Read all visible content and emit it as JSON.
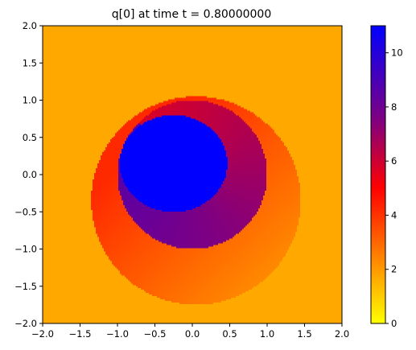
{
  "chart_data": {
    "type": "heatmap",
    "title": "q[0] at time t =     0.80000000",
    "xlabel": "",
    "ylabel": "",
    "xlim": [
      -2.0,
      2.0
    ],
    "ylim": [
      -2.0,
      2.0
    ],
    "x_ticks": [
      -2.0,
      -1.5,
      -1.0,
      -0.5,
      0.0,
      0.5,
      1.0,
      1.5,
      2.0
    ],
    "x_tick_labels": [
      "−2.0",
      "−1.5",
      "−1.0",
      "−0.5",
      "0.0",
      "0.5",
      "1.0",
      "1.5",
      "2.0"
    ],
    "y_ticks": [
      2.0,
      1.5,
      1.0,
      0.5,
      0.0,
      -0.5,
      -1.0,
      -1.5,
      -2.0
    ],
    "y_tick_labels": [
      "2.0",
      "1.5",
      "1.0",
      "0.5",
      "0.0",
      "−0.5",
      "−1.0",
      "−1.5",
      "−2.0"
    ],
    "grid": false,
    "background_value": 1.7,
    "regions": {
      "outer_disk": {
        "center": [
          0.05,
          -0.35
        ],
        "radius": 1.4,
        "value_range": [
          1.7,
          4.2
        ]
      },
      "swirl_disk": {
        "center": [
          0.0,
          0.0
        ],
        "radius": 1.0,
        "value_range": [
          4.2,
          8.5
        ]
      },
      "core_blob": {
        "center": [
          -0.25,
          0.15
        ],
        "radius_x": 0.72,
        "radius_y": 0.65,
        "value": 11.0
      }
    },
    "colorbar": {
      "range": [
        0,
        11
      ],
      "ticks": [
        0,
        2,
        4,
        6,
        8,
        10
      ],
      "tick_labels": [
        "0",
        "2",
        "4",
        "6",
        "8",
        "10"
      ],
      "colors": [
        {
          "value": 0,
          "color": "#ffff00"
        },
        {
          "value": 5,
          "color": "#ff0000"
        },
        {
          "value": 7.5,
          "color": "#800080"
        },
        {
          "value": 11,
          "color": "#0000ff"
        }
      ]
    }
  }
}
